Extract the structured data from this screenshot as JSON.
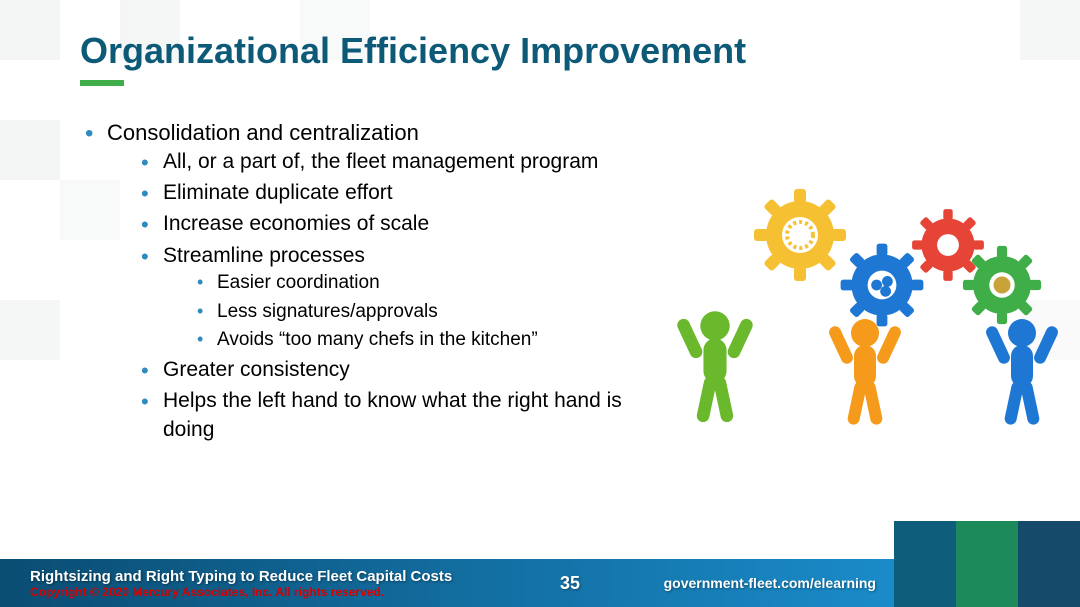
{
  "colors": {
    "title": "#0d5a78",
    "underline": "#3fae49",
    "bullet_l1": "#2e8bc0",
    "bullet_l2": "#2e8bc0",
    "bullet_l3": "#2e8bc0",
    "footer_gradient_from": "#0a4d73",
    "footer_gradient_to": "#1a8bc9",
    "copyright": "#d40000",
    "thumb_a": "#0e5d7a",
    "thumb_b": "#1c8a5a",
    "thumb_c": "#154a6b",
    "gear_yellow": "#f6c033",
    "gear_red": "#e64436",
    "gear_blue": "#1f77d4",
    "gear_green": "#3fae49",
    "fig_orange": "#f59a1b",
    "fig_green": "#6ab82c",
    "fig_blue": "#1f77d4"
  },
  "title": "Organizational Efficiency Improvement",
  "bullets": {
    "l1_0": "Consolidation and centralization",
    "l2_0": "All, or a part of, the fleet management program",
    "l2_1": "Eliminate duplicate effort",
    "l2_2": "Increase economies of scale",
    "l2_3": "Streamline processes",
    "l3_0": "Easier coordination",
    "l3_1": "Less signatures/approvals",
    "l3_2": "Avoids “too many chefs in the kitchen”",
    "l2_4": "Greater consistency",
    "l2_5": "Helps the left hand to know what the right hand is doing"
  },
  "footer": {
    "left_title": "Rightsizing and Right Typing to Reduce Fleet Capital Costs",
    "copyright": "Copyright ©  2020 Mercury Associates, Inc. All rights reserved.",
    "page": "35",
    "url": "government-fleet.com/elearning"
  }
}
